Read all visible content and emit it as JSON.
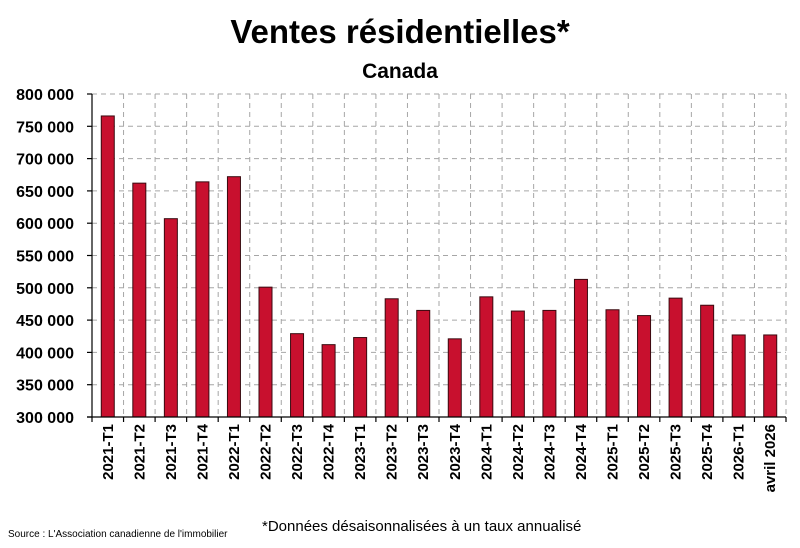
{
  "chart_data": {
    "type": "bar",
    "title": "Ventes résidentielles*",
    "subtitle": "Canada",
    "categories": [
      "2021-T1",
      "2021-T2",
      "2021-T3",
      "2021-T4",
      "2022-T1",
      "2022-T2",
      "2022-T3",
      "2022-T4",
      "2023-T1",
      "2023-T2",
      "2023-T3",
      "2023-T4",
      "2024-T1",
      "2024-T2",
      "2024-T3",
      "2024-T4",
      "2025-T1",
      "2025-T2",
      "2025-T3",
      "2025-T4",
      "2026-T1",
      "avril 2026"
    ],
    "values": [
      766000,
      662000,
      607000,
      664000,
      672000,
      501000,
      429000,
      412000,
      423000,
      483000,
      465000,
      421000,
      486000,
      464000,
      465000,
      513000,
      466000,
      457000,
      484000,
      473000,
      427000,
      427000
    ],
    "ylim": [
      300000,
      800000
    ],
    "yticks": [
      "300 000",
      "350 000",
      "400 000",
      "450 000",
      "500 000",
      "550 000",
      "600 000",
      "650 000",
      "700 000",
      "750 000",
      "800 000"
    ],
    "grid": true,
    "bar_color": "#c8102e"
  },
  "footnote": "*Données désaisonnalisées à un taux annualisé",
  "source": "Source : L'Association canadienne de l'immobilier"
}
